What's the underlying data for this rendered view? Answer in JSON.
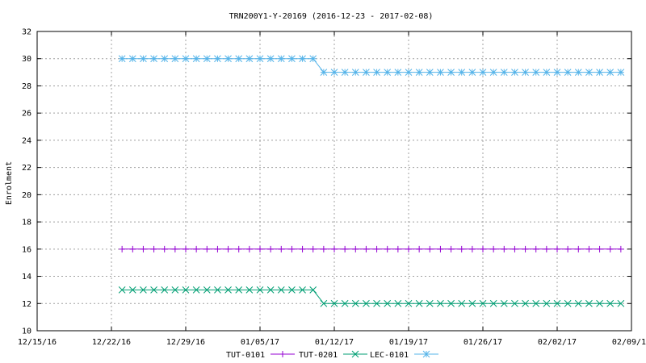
{
  "chart_data": {
    "type": "line",
    "title": "TRN200Y1-Y-20169 (2016-12-23 - 2017-02-08)",
    "xlabel": "",
    "ylabel": "Enrolment",
    "xlim": [
      "2016-12-15",
      "2017-02-09"
    ],
    "ylim": [
      10,
      32
    ],
    "x_ticks": [
      "12/15/16",
      "12/22/16",
      "12/29/16",
      "01/05/17",
      "01/12/17",
      "01/19/17",
      "01/26/17",
      "02/02/17",
      "02/09/17"
    ],
    "y_ticks": [
      "10",
      "12",
      "14",
      "16",
      "18",
      "20",
      "22",
      "24",
      "26",
      "28",
      "30",
      "32"
    ],
    "grid": true,
    "legend_position": "bottom",
    "series": [
      {
        "name": "TUT-0101",
        "color": "#9400d3",
        "marker": "plus",
        "segments": [
          {
            "start": "2016-12-23",
            "end": "2017-02-08",
            "value": 16
          }
        ]
      },
      {
        "name": "TUT-0201",
        "color": "#009e73",
        "marker": "cross",
        "segments": [
          {
            "start": "2016-12-23",
            "end": "2017-01-10",
            "value": 13
          },
          {
            "start": "2017-01-11",
            "end": "2017-02-08",
            "value": 12
          }
        ]
      },
      {
        "name": "LEC-0101",
        "color": "#56b4e9",
        "marker": "star",
        "segments": [
          {
            "start": "2016-12-23",
            "end": "2017-01-10",
            "value": 30
          },
          {
            "start": "2017-01-11",
            "end": "2017-02-08",
            "value": 29
          }
        ]
      }
    ]
  }
}
